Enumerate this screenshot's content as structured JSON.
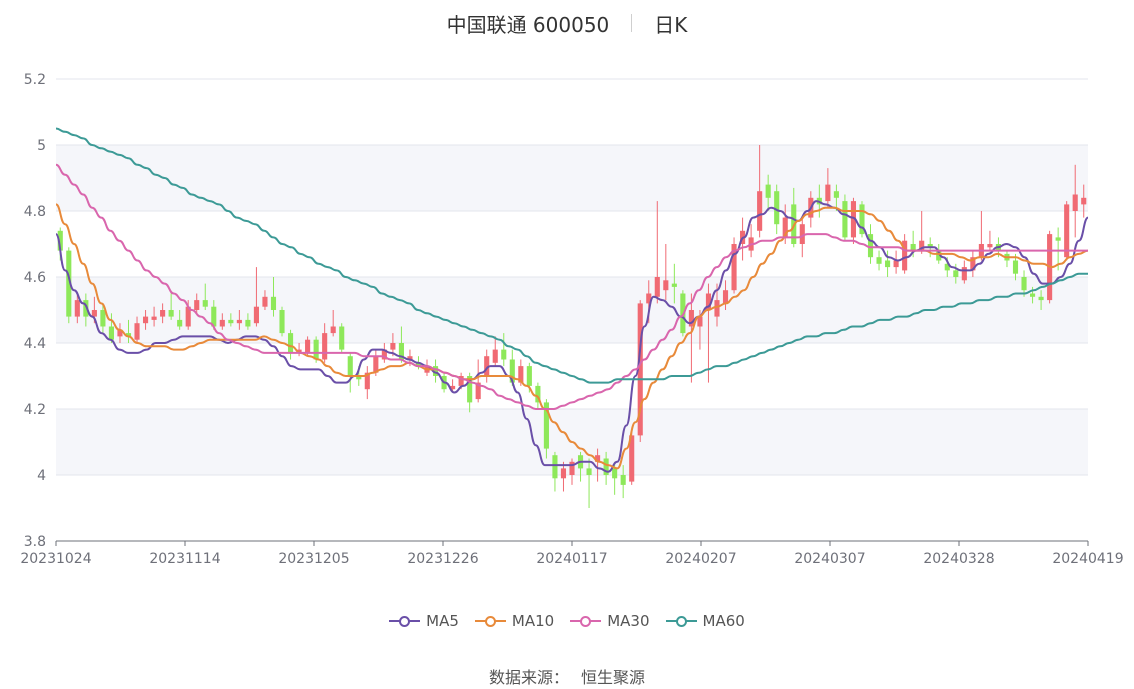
{
  "title": {
    "name": "中国联通 600050",
    "period": "日K"
  },
  "source": {
    "label": "数据来源：",
    "value": "恒生聚源"
  },
  "colors": {
    "up": "#f06a73",
    "down": "#8ee85a",
    "grid": "#e3e6ec",
    "band": "#f5f6fa",
    "axis": "#6e7079",
    "text": "#6e7079"
  },
  "chart_data": {
    "type": "candlestick",
    "title": "中国联通 600050",
    "subtitle": "日K",
    "ylim": [
      3.8,
      5.2
    ],
    "yticks": [
      "3.8",
      "4",
      "4.2",
      "4.4",
      "4.6",
      "4.8",
      "5",
      "5.2"
    ],
    "xticks": [
      "20231024",
      "20231114",
      "20231205",
      "20231226",
      "20240117",
      "20240207",
      "20240307",
      "20240328",
      "20240419"
    ],
    "legend": [
      "MA5",
      "MA10",
      "MA30",
      "MA60"
    ],
    "series_colors": {
      "MA5": "#6a4fa8",
      "MA10": "#e88a3a",
      "MA30": "#d966ad",
      "MA60": "#3c9a96"
    },
    "grid": true,
    "legend_position": "bottom",
    "candles": [
      [
        4.74,
        4.68,
        4.75,
        4.65
      ],
      [
        4.68,
        4.48,
        4.69,
        4.46
      ],
      [
        4.48,
        4.53,
        4.55,
        4.46
      ],
      [
        4.53,
        4.48,
        4.55,
        4.45
      ],
      [
        4.48,
        4.5,
        4.54,
        4.46
      ],
      [
        4.5,
        4.45,
        4.52,
        4.43
      ],
      [
        4.45,
        4.41,
        4.49,
        4.4
      ],
      [
        4.42,
        4.44,
        4.46,
        4.4
      ],
      [
        4.43,
        4.42,
        4.47,
        4.4
      ],
      [
        4.41,
        4.46,
        4.48,
        4.4
      ],
      [
        4.46,
        4.48,
        4.5,
        4.44
      ],
      [
        4.47,
        4.48,
        4.51,
        4.45
      ],
      [
        4.48,
        4.5,
        4.52,
        4.46
      ],
      [
        4.5,
        4.48,
        4.55,
        4.47
      ],
      [
        4.47,
        4.45,
        4.5,
        4.44
      ],
      [
        4.45,
        4.51,
        4.53,
        4.44
      ],
      [
        4.5,
        4.53,
        4.55,
        4.49
      ],
      [
        4.53,
        4.51,
        4.58,
        4.5
      ],
      [
        4.51,
        4.45,
        4.53,
        4.44
      ],
      [
        4.45,
        4.47,
        4.49,
        4.44
      ],
      [
        4.47,
        4.46,
        4.49,
        4.45
      ],
      [
        4.46,
        4.47,
        4.5,
        4.44
      ],
      [
        4.47,
        4.45,
        4.49,
        4.44
      ],
      [
        4.46,
        4.51,
        4.63,
        4.45
      ],
      [
        4.51,
        4.54,
        4.56,
        4.5
      ],
      [
        4.54,
        4.5,
        4.6,
        4.48
      ],
      [
        4.5,
        4.43,
        4.51,
        4.42
      ],
      [
        4.43,
        4.37,
        4.44,
        4.35
      ],
      [
        4.37,
        4.38,
        4.4,
        4.36
      ],
      [
        4.37,
        4.41,
        4.42,
        4.36
      ],
      [
        4.41,
        4.35,
        4.42,
        4.34
      ],
      [
        4.35,
        4.43,
        4.46,
        4.34
      ],
      [
        4.43,
        4.45,
        4.5,
        4.42
      ],
      [
        4.45,
        4.38,
        4.46,
        4.37
      ],
      [
        4.36,
        4.3,
        4.37,
        4.25
      ],
      [
        4.3,
        4.29,
        4.33,
        4.27
      ],
      [
        4.26,
        4.31,
        4.33,
        4.23
      ],
      [
        4.31,
        4.36,
        4.38,
        4.3
      ],
      [
        4.35,
        4.38,
        4.4,
        4.34
      ],
      [
        4.38,
        4.4,
        4.43,
        4.36
      ],
      [
        4.4,
        4.35,
        4.45,
        4.34
      ],
      [
        4.35,
        4.36,
        4.38,
        4.33
      ],
      [
        4.34,
        4.33,
        4.36,
        4.32
      ],
      [
        4.31,
        4.33,
        4.35,
        4.3
      ],
      [
        4.33,
        4.3,
        4.35,
        4.28
      ],
      [
        4.3,
        4.26,
        4.31,
        4.25
      ],
      [
        4.26,
        4.27,
        4.29,
        4.25
      ],
      [
        4.27,
        4.3,
        4.31,
        4.26
      ],
      [
        4.3,
        4.22,
        4.31,
        4.19
      ],
      [
        4.23,
        4.28,
        4.35,
        4.22
      ],
      [
        4.3,
        4.36,
        4.38,
        4.28
      ],
      [
        4.34,
        4.38,
        4.42,
        4.33
      ],
      [
        4.38,
        4.35,
        4.43,
        4.33
      ],
      [
        4.35,
        4.28,
        4.38,
        4.27
      ],
      [
        4.28,
        4.33,
        4.35,
        4.27
      ],
      [
        4.33,
        4.27,
        4.34,
        4.25
      ],
      [
        4.27,
        4.22,
        4.28,
        4.2
      ],
      [
        4.22,
        4.08,
        4.23,
        4.05
      ],
      [
        4.06,
        3.99,
        4.07,
        3.95
      ],
      [
        3.99,
        4.02,
        4.04,
        3.95
      ],
      [
        4.0,
        4.04,
        4.05,
        3.97
      ],
      [
        4.06,
        4.02,
        4.07,
        3.98
      ],
      [
        4.02,
        4.0,
        4.05,
        3.9
      ],
      [
        4.04,
        4.06,
        4.08,
        3.98
      ],
      [
        4.05,
        4.0,
        4.07,
        3.97
      ],
      [
        4.02,
        3.99,
        4.04,
        3.94
      ],
      [
        4.0,
        3.97,
        4.03,
        3.93
      ],
      [
        3.98,
        4.12,
        4.14,
        3.97
      ],
      [
        4.12,
        4.52,
        4.53,
        4.1
      ],
      [
        4.52,
        4.55,
        4.59,
        4.46
      ],
      [
        4.54,
        4.6,
        4.83,
        4.52
      ],
      [
        4.56,
        4.59,
        4.7,
        4.53
      ],
      [
        4.58,
        4.57,
        4.64,
        4.52
      ],
      [
        4.55,
        4.43,
        4.56,
        4.42
      ],
      [
        4.45,
        4.5,
        4.55,
        4.28
      ],
      [
        4.45,
        4.48,
        4.5,
        4.38
      ],
      [
        4.5,
        4.55,
        4.58,
        4.28
      ],
      [
        4.48,
        4.53,
        4.58,
        4.45
      ],
      [
        4.52,
        4.56,
        4.59,
        4.5
      ],
      [
        4.56,
        4.7,
        4.72,
        4.55
      ],
      [
        4.7,
        4.74,
        4.78,
        4.65
      ],
      [
        4.68,
        4.72,
        4.76,
        4.66
      ],
      [
        4.74,
        4.86,
        5.0,
        4.72
      ],
      [
        4.88,
        4.84,
        4.91,
        4.8
      ],
      [
        4.86,
        4.76,
        4.88,
        4.73
      ],
      [
        4.72,
        4.78,
        4.82,
        4.7
      ],
      [
        4.82,
        4.7,
        4.87,
        4.69
      ],
      [
        4.7,
        4.76,
        4.78,
        4.66
      ],
      [
        4.78,
        4.84,
        4.86,
        4.75
      ],
      [
        4.84,
        4.82,
        4.88,
        4.78
      ],
      [
        4.83,
        4.88,
        4.93,
        4.81
      ],
      [
        4.86,
        4.84,
        4.88,
        4.8
      ],
      [
        4.83,
        4.72,
        4.85,
        4.71
      ],
      [
        4.72,
        4.83,
        4.84,
        4.7
      ],
      [
        4.82,
        4.73,
        4.83,
        4.72
      ],
      [
        4.73,
        4.66,
        4.76,
        4.64
      ],
      [
        4.66,
        4.64,
        4.68,
        4.62
      ],
      [
        4.65,
        4.63,
        4.68,
        4.6
      ],
      [
        4.63,
        4.65,
        4.68,
        4.61
      ],
      [
        4.62,
        4.71,
        4.73,
        4.61
      ],
      [
        4.7,
        4.68,
        4.74,
        4.66
      ],
      [
        4.68,
        4.71,
        4.8,
        4.67
      ],
      [
        4.7,
        4.69,
        4.72,
        4.66
      ],
      [
        4.68,
        4.65,
        4.7,
        4.64
      ],
      [
        4.64,
        4.62,
        4.66,
        4.6
      ],
      [
        4.62,
        4.6,
        4.64,
        4.58
      ],
      [
        4.59,
        4.63,
        4.65,
        4.58
      ],
      [
        4.62,
        4.66,
        4.68,
        4.6
      ],
      [
        4.66,
        4.7,
        4.8,
        4.65
      ],
      [
        4.69,
        4.7,
        4.74,
        4.68
      ],
      [
        4.7,
        4.68,
        4.72,
        4.66
      ],
      [
        4.67,
        4.65,
        4.68,
        4.63
      ],
      [
        4.65,
        4.61,
        4.67,
        4.59
      ],
      [
        4.6,
        4.56,
        4.62,
        4.54
      ],
      [
        4.55,
        4.54,
        4.57,
        4.52
      ],
      [
        4.54,
        4.53,
        4.56,
        4.5
      ],
      [
        4.53,
        4.73,
        4.74,
        4.52
      ],
      [
        4.72,
        4.71,
        4.75,
        4.62
      ],
      [
        4.66,
        4.82,
        4.83,
        4.65
      ],
      [
        4.8,
        4.85,
        4.94,
        4.72
      ],
      [
        4.82,
        4.84,
        4.88,
        4.78
      ]
    ],
    "series": [
      {
        "name": "MA5",
        "values": [
          4.73,
          4.62,
          4.56,
          4.52,
          4.48,
          4.43,
          4.41,
          4.38,
          4.37,
          4.37,
          4.38,
          4.4,
          4.4,
          4.41,
          4.42,
          4.42,
          4.42,
          4.42,
          4.41,
          4.4,
          4.41,
          4.42,
          4.42,
          4.41,
          4.39,
          4.36,
          4.33,
          4.32,
          4.32,
          4.32,
          4.3,
          4.28,
          4.28,
          4.3,
          4.35,
          4.38,
          4.38,
          4.37,
          4.36,
          4.35,
          4.34,
          4.33,
          4.31,
          4.28,
          4.25,
          4.27,
          4.29,
          4.31,
          4.33,
          4.33,
          4.3,
          4.25,
          4.17,
          4.09,
          4.03,
          4.03,
          4.03,
          4.03,
          4.04,
          4.04,
          4.02,
          4.01,
          4.04,
          4.15,
          4.3,
          4.45,
          4.54,
          4.53,
          4.51,
          4.48,
          4.46,
          4.48,
          4.51,
          4.56,
          4.62,
          4.67,
          4.72,
          4.78,
          4.79,
          4.81,
          4.8,
          4.78,
          4.77,
          4.8,
          4.83,
          4.82,
          4.81,
          4.79,
          4.78,
          4.75,
          4.71,
          4.69,
          4.66,
          4.65,
          4.66,
          4.68,
          4.69,
          4.69,
          4.66,
          4.63,
          4.62,
          4.62,
          4.64,
          4.67,
          4.69,
          4.7,
          4.69,
          4.66,
          4.61,
          4.58,
          4.58,
          4.6,
          4.64,
          4.71,
          4.78
        ]
      },
      {
        "name": "MA10",
        "values": [
          4.82,
          4.76,
          4.7,
          4.64,
          4.58,
          4.52,
          4.47,
          4.44,
          4.42,
          4.4,
          4.39,
          4.39,
          4.39,
          4.38,
          4.38,
          4.39,
          4.4,
          4.41,
          4.41,
          4.41,
          4.41,
          4.41,
          4.41,
          4.42,
          4.41,
          4.4,
          4.39,
          4.37,
          4.36,
          4.35,
          4.33,
          4.31,
          4.3,
          4.3,
          4.3,
          4.31,
          4.32,
          4.33,
          4.33,
          4.34,
          4.33,
          4.32,
          4.32,
          4.31,
          4.3,
          4.29,
          4.29,
          4.3,
          4.3,
          4.3,
          4.3,
          4.29,
          4.27,
          4.24,
          4.2,
          4.16,
          4.13,
          4.1,
          4.08,
          4.06,
          4.04,
          4.03,
          4.02,
          4.08,
          4.16,
          4.23,
          4.28,
          4.32,
          4.36,
          4.4,
          4.43,
          4.48,
          4.5,
          4.51,
          4.52,
          4.54,
          4.56,
          4.6,
          4.64,
          4.67,
          4.71,
          4.74,
          4.77,
          4.79,
          4.8,
          4.81,
          4.81,
          4.8,
          4.8,
          4.8,
          4.79,
          4.77,
          4.74,
          4.71,
          4.68,
          4.68,
          4.68,
          4.67,
          4.67,
          4.67,
          4.66,
          4.65,
          4.66,
          4.66,
          4.67,
          4.66,
          4.66,
          4.65,
          4.64,
          4.64,
          4.63,
          4.64,
          4.66,
          4.67,
          4.68
        ]
      },
      {
        "name": "MA30",
        "values": [
          4.94,
          4.91,
          4.88,
          4.85,
          4.81,
          4.78,
          4.74,
          4.71,
          4.68,
          4.65,
          4.62,
          4.6,
          4.58,
          4.55,
          4.53,
          4.5,
          4.48,
          4.46,
          4.43,
          4.41,
          4.4,
          4.39,
          4.38,
          4.37,
          4.37,
          4.37,
          4.37,
          4.37,
          4.37,
          4.37,
          4.37,
          4.37,
          4.37,
          4.37,
          4.36,
          4.36,
          4.36,
          4.35,
          4.35,
          4.34,
          4.33,
          4.33,
          4.32,
          4.31,
          4.3,
          4.29,
          4.28,
          4.27,
          4.26,
          4.24,
          4.23,
          4.22,
          4.21,
          4.2,
          4.2,
          4.2,
          4.21,
          4.22,
          4.23,
          4.24,
          4.25,
          4.26,
          4.28,
          4.3,
          4.32,
          4.35,
          4.38,
          4.41,
          4.44,
          4.48,
          4.52,
          4.56,
          4.6,
          4.63,
          4.66,
          4.68,
          4.69,
          4.7,
          4.71,
          4.71,
          4.72,
          4.72,
          4.72,
          4.73,
          4.73,
          4.73,
          4.72,
          4.71,
          4.71,
          4.7,
          4.69,
          4.69,
          4.69,
          4.69,
          4.68,
          4.68,
          4.68,
          4.68,
          4.68,
          4.68,
          4.68,
          4.68,
          4.68,
          4.68,
          4.68,
          4.68,
          4.68,
          4.68,
          4.68,
          4.68,
          4.68,
          4.68,
          4.68,
          4.68,
          4.68
        ]
      },
      {
        "name": "MA60",
        "values": [
          5.05,
          5.04,
          5.03,
          5.02,
          5.0,
          4.99,
          4.98,
          4.97,
          4.96,
          4.94,
          4.93,
          4.91,
          4.9,
          4.88,
          4.87,
          4.85,
          4.84,
          4.83,
          4.82,
          4.8,
          4.78,
          4.77,
          4.76,
          4.74,
          4.72,
          4.7,
          4.69,
          4.67,
          4.66,
          4.64,
          4.63,
          4.62,
          4.6,
          4.59,
          4.58,
          4.57,
          4.55,
          4.54,
          4.53,
          4.52,
          4.5,
          4.49,
          4.48,
          4.47,
          4.46,
          4.45,
          4.44,
          4.43,
          4.42,
          4.41,
          4.39,
          4.38,
          4.36,
          4.34,
          4.33,
          4.32,
          4.31,
          4.3,
          4.29,
          4.28,
          4.28,
          4.28,
          4.29,
          4.29,
          4.29,
          4.29,
          4.29,
          4.29,
          4.3,
          4.3,
          4.3,
          4.31,
          4.32,
          4.33,
          4.33,
          4.34,
          4.35,
          4.36,
          4.37,
          4.38,
          4.39,
          4.4,
          4.41,
          4.42,
          4.42,
          4.43,
          4.43,
          4.44,
          4.45,
          4.45,
          4.46,
          4.47,
          4.47,
          4.48,
          4.48,
          4.49,
          4.5,
          4.5,
          4.51,
          4.51,
          4.52,
          4.52,
          4.53,
          4.53,
          4.54,
          4.54,
          4.55,
          4.55,
          4.56,
          4.57,
          4.58,
          4.59,
          4.6,
          4.61,
          4.61
        ]
      }
    ]
  }
}
